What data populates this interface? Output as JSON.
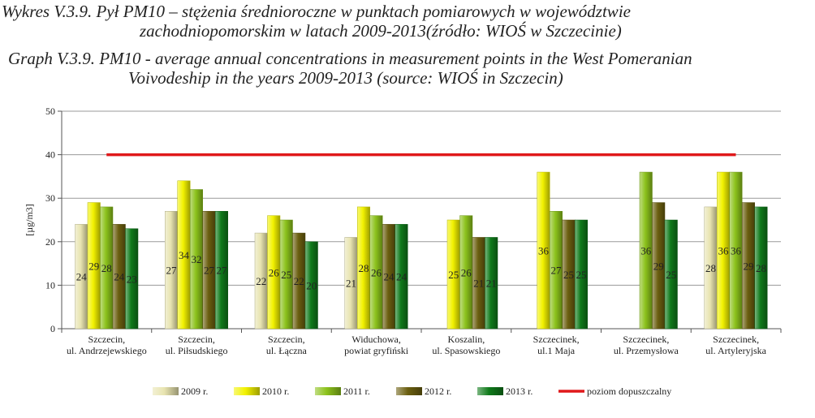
{
  "caption": {
    "pl_line1": "Wykres V.3.9. Pył PM10 – stężenia średnioroczne w punktach pomiarowych w województwie",
    "pl_line2": "zachodniopomorskim w latach 2009-2013(źródło: WIOŚ w Szczecinie)",
    "en_line1": "Graph V.3.9. PM10 - average annual concentrations in measurement points in the West Pomeranian",
    "en_line2": "Voivodeship in the years 2009-2013 (source: WIOŚ in Szczecin)"
  },
  "chart_data": {
    "type": "bar",
    "ylabel": "[µg/m3]",
    "ylim": [
      0,
      50
    ],
    "yticks": [
      "0",
      "10",
      "20",
      "30",
      "40",
      "50"
    ],
    "grid": "horizontal",
    "legend_position": "bottom",
    "categories": [
      [
        "Szczecin,",
        "ul. Andrzejewskiego"
      ],
      [
        "Szczecin,",
        "ul. Piłsudskiego"
      ],
      [
        "Szczecin,",
        "ul. Łączna"
      ],
      [
        "Widuchowa,",
        "powiat gryfiński"
      ],
      [
        "Koszalin,",
        "ul. Spasowskiego"
      ],
      [
        "Szczecinek,",
        "ul.1 Maja"
      ],
      [
        "Szczecinek,",
        "ul. Przemysłowa"
      ],
      [
        "Szczecinek,",
        "ul. Artyleryjska"
      ]
    ],
    "series": [
      {
        "name": "2009 r.",
        "color": "#e8e4b0",
        "values": [
          24,
          27,
          22,
          21,
          null,
          null,
          null,
          28
        ]
      },
      {
        "name": "2010 r.",
        "color": "#f2f200",
        "values": [
          29,
          34,
          26,
          28,
          25,
          36,
          null,
          36
        ]
      },
      {
        "name": "2011 r.",
        "color": "#8cc21c",
        "values": [
          28,
          32,
          25,
          26,
          26,
          27,
          36,
          36
        ]
      },
      {
        "name": "2012 r.",
        "color": "#6b5f10",
        "values": [
          24,
          27,
          22,
          24,
          21,
          25,
          29,
          29
        ]
      },
      {
        "name": "2013 r.",
        "color": "#0f7a1a",
        "values": [
          23,
          27,
          20,
          24,
          21,
          25,
          25,
          28
        ]
      }
    ],
    "reference_line": {
      "name": "poziom dopuszczalny",
      "value": 40,
      "color": "#e0191b"
    }
  }
}
